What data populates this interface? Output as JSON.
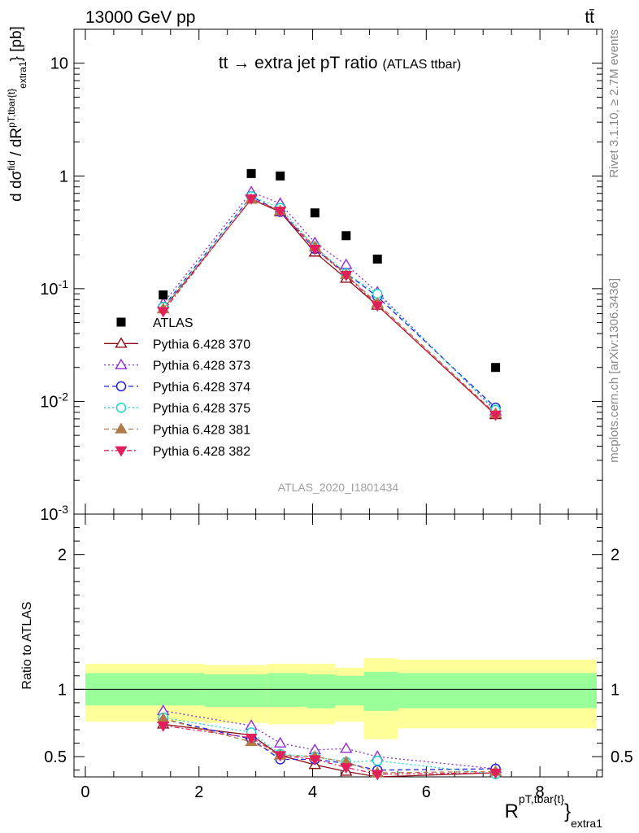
{
  "header": {
    "left": "13000 GeV pp",
    "right": "tt̄"
  },
  "side_labels": {
    "rivet": "Rivet 3.1.10, ≥ 2.7M events",
    "mcplots": "mcplots.cern.ch [arXiv:1306.3436]"
  },
  "chart_data": [
    {
      "type": "scatter",
      "title": "tt → extra jet pT ratio",
      "title_suffix": "(ATLAS ttbar)",
      "watermark": "ATLAS_2020_I1801434",
      "ylabel": "d σ^fid / d R^{pT,tbar{t}}_extra1 [pb]",
      "y_scale": "log",
      "ylim": [
        0.001,
        20
      ],
      "xlim": [
        -0.2,
        9.1
      ],
      "y_ticks": [
        {
          "v": 10,
          "label": "10"
        },
        {
          "v": 1,
          "label": "1"
        },
        {
          "v": 0.1,
          "label": "10^-1"
        },
        {
          "v": 0.01,
          "label": "10^-2"
        },
        {
          "v": 0.001,
          "label": "10^-3"
        }
      ],
      "legend_position": "left-middle",
      "x": [
        1.37,
        2.92,
        3.43,
        4.04,
        4.59,
        5.14,
        7.22
      ],
      "series": [
        {
          "name": "ATLAS",
          "color": "#000000",
          "marker": "square-filled",
          "line": "none",
          "values": [
            0.088,
            1.05,
            1.0,
            0.47,
            0.295,
            0.183,
            0.02
          ]
        },
        {
          "name": "Pythia 6.428 370",
          "color": "#8b0f17",
          "marker": "triangle-open",
          "line": "solid",
          "values": [
            0.066,
            0.62,
            0.48,
            0.21,
            0.123,
            0.071,
            0.0076
          ]
        },
        {
          "name": "Pythia 6.428 373",
          "color": "#8f2dd8",
          "marker": "triangle-open",
          "line": "dotted",
          "values": [
            0.074,
            0.72,
            0.57,
            0.255,
            0.163,
            0.093,
            0.0082
          ]
        },
        {
          "name": "Pythia 6.428 374",
          "color": "#2020e0",
          "marker": "circle-open",
          "line": "dashed",
          "values": [
            0.069,
            0.66,
            0.48,
            0.225,
            0.137,
            0.085,
            0.0088
          ]
        },
        {
          "name": "Pythia 6.428 375",
          "color": "#1ad8c8",
          "marker": "circle-open",
          "line": "dotted",
          "values": [
            0.069,
            0.66,
            0.52,
            0.235,
            0.137,
            0.09,
            0.0084
          ]
        },
        {
          "name": "Pythia 6.428 381",
          "color": "#b07a4a",
          "marker": "triangle-filled",
          "line": "dashed",
          "values": [
            0.066,
            0.62,
            0.49,
            0.235,
            0.133,
            0.074,
            0.0078
          ]
        },
        {
          "name": "Pythia 6.428 382",
          "color": "#e0205a",
          "marker": "triangledown-filled",
          "line": "dashdot",
          "values": [
            0.063,
            0.63,
            0.49,
            0.225,
            0.132,
            0.071,
            0.0076
          ]
        }
      ]
    },
    {
      "type": "line",
      "ylabel": "Ratio to ATLAS",
      "xlabel": "R^{pT,tbar{t}}_extra1",
      "ylim": [
        0.35,
        2.3
      ],
      "xlim": [
        -0.2,
        9.1
      ],
      "x_ticks": [
        0,
        2,
        4,
        6,
        8
      ],
      "y_ticks": [
        0.5,
        1,
        2
      ],
      "bands": {
        "edges": [
          0,
          2.1,
          3.2,
          3.9,
          4.4,
          4.9,
          5.5,
          9.0
        ],
        "outer": [
          [
            0.76,
            1.19
          ],
          [
            0.75,
            1.18
          ],
          [
            0.74,
            1.19
          ],
          [
            0.74,
            1.19
          ],
          [
            0.76,
            1.16
          ],
          [
            0.63,
            1.23
          ],
          [
            0.71,
            1.22
          ]
        ],
        "inner": [
          [
            0.88,
            1.12
          ],
          [
            0.87,
            1.11
          ],
          [
            0.87,
            1.12
          ],
          [
            0.86,
            1.11
          ],
          [
            0.88,
            1.1
          ],
          [
            0.84,
            1.13
          ],
          [
            0.86,
            1.12
          ]
        ],
        "outer_color": "#ffff99",
        "inner_color": "#99ff99"
      },
      "x": [
        1.37,
        2.92,
        3.43,
        4.04,
        4.59,
        5.14,
        7.22
      ],
      "series": [
        {
          "name": "Pythia 6.428 370",
          "values": [
            0.74,
            0.66,
            0.51,
            0.44,
            0.39,
            0.35,
            0.38
          ]
        },
        {
          "name": "Pythia 6.428 373",
          "values": [
            0.84,
            0.73,
            0.6,
            0.55,
            0.56,
            0.5,
            0.41
          ]
        },
        {
          "name": "Pythia 6.428 374",
          "values": [
            0.78,
            0.63,
            0.48,
            0.48,
            0.45,
            0.4,
            0.41
          ]
        },
        {
          "name": "Pythia 6.428 375",
          "values": [
            0.79,
            0.68,
            0.52,
            0.5,
            0.46,
            0.47,
            0.37
          ]
        },
        {
          "name": "Pythia 6.428 381",
          "values": [
            0.78,
            0.61,
            0.51,
            0.5,
            0.46,
            0.38,
            0.39
          ]
        },
        {
          "name": "Pythia 6.428 382",
          "values": [
            0.73,
            0.64,
            0.51,
            0.48,
            0.42,
            0.37,
            0.38
          ]
        }
      ]
    }
  ]
}
